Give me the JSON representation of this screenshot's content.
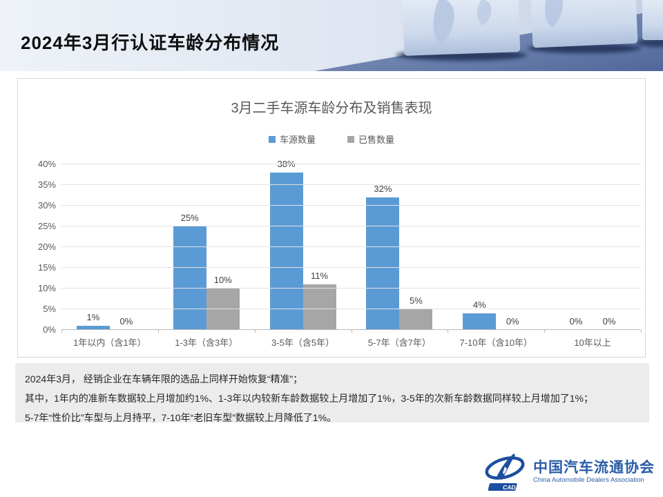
{
  "header": {
    "title": "2024年3月行认证车龄分布情况"
  },
  "chart_data": {
    "type": "bar",
    "title": "3月二手车源车龄分布及销售表现",
    "categories": [
      "1年以内（含1年）",
      "1-3年（含3年）",
      "3-5年（含5年）",
      "5-7年（含7年）",
      "7-10年（含10年）",
      "10年以上"
    ],
    "series": [
      {
        "name": "车源数量",
        "color": "#5B9BD5",
        "values": [
          1,
          25,
          38,
          32,
          4,
          0
        ]
      },
      {
        "name": "已售数量",
        "color": "#A6A6A6",
        "values": [
          0,
          10,
          11,
          5,
          0,
          0
        ]
      }
    ],
    "value_suffix": "%",
    "ylim": [
      0,
      40
    ],
    "ytick_step": 5,
    "grid": true,
    "legend_position": "top",
    "xlabel": "",
    "ylabel": ""
  },
  "summary": {
    "lines": [
      "2024年3月， 经销企业在车辆年限的选品上同样开始恢复“精准”；",
      "其中，1年内的准新车数据较上月增加约1%、1-3年以内较新车龄数据较上月增加了1%，3-5年的次新车龄数据同样较上月增加了1%；",
      "5-7年“性价比”车型与上月持平，7-10年“老旧车型”数据较上月降低了1%。"
    ]
  },
  "footer": {
    "logo_text_cn": "中国汽车流通协会",
    "logo_text_en": "China Automobile Dealers Association",
    "logo_badge": "CADA",
    "logo_color": "#1d4f9e"
  }
}
